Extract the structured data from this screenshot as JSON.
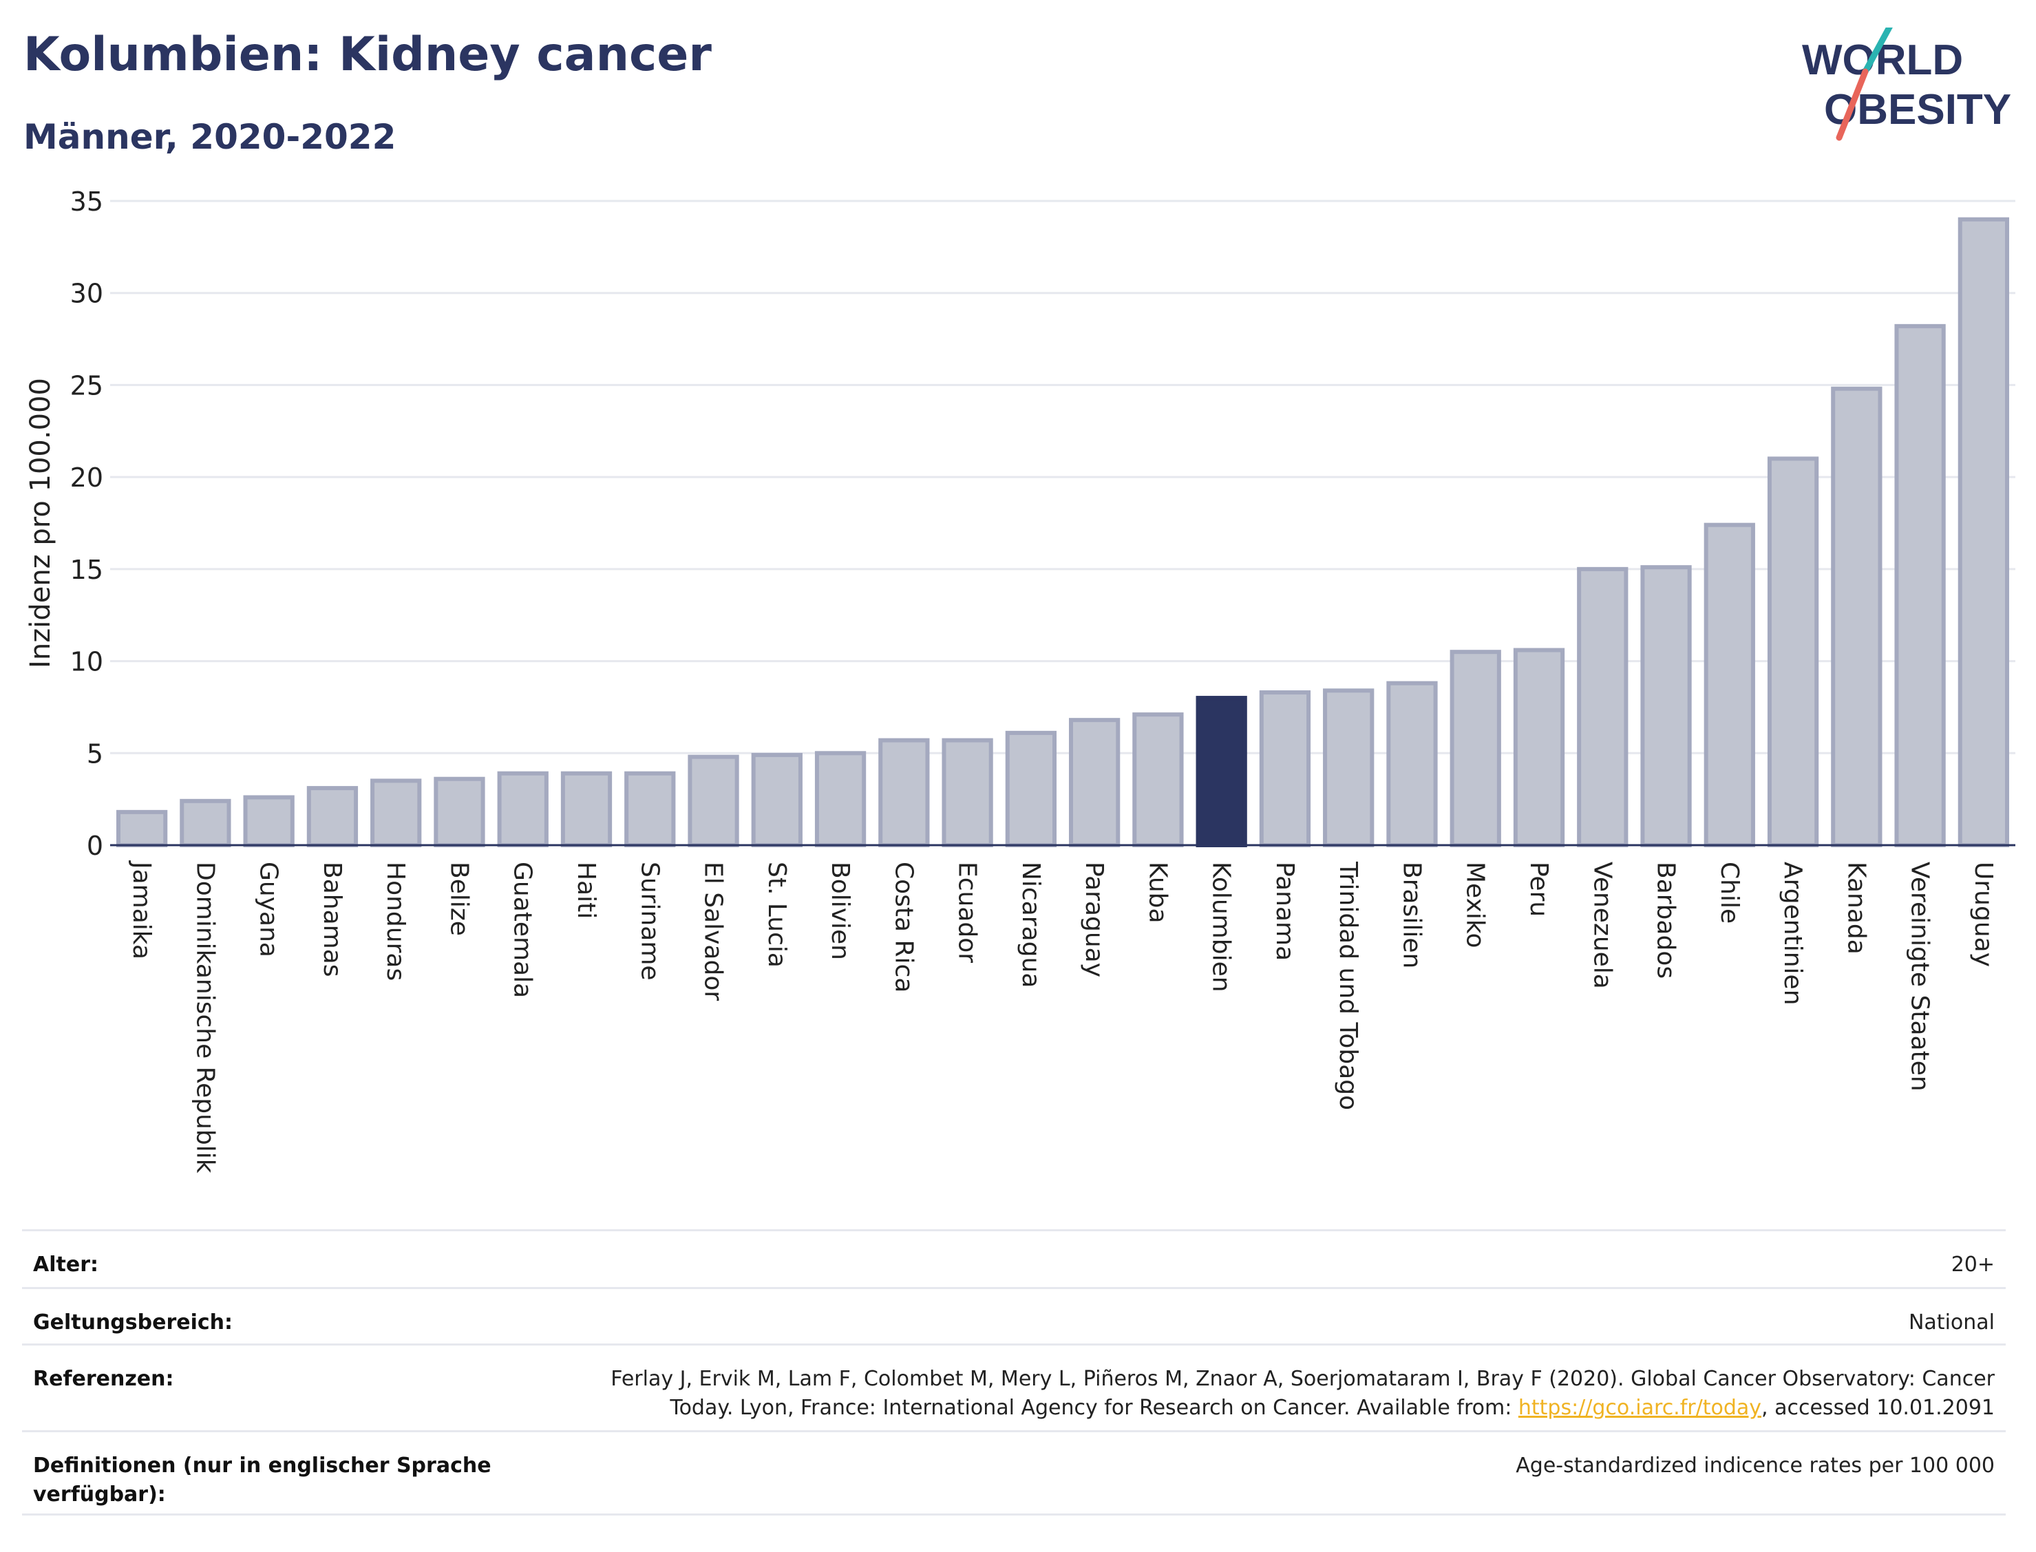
{
  "title": "Kolumbien: Kidney cancer",
  "subtitle": "Männer, 2020-2022",
  "logo": {
    "line1": "WORLD",
    "line2": "OBESITY",
    "text_color": "#2b3561",
    "slash_colors": [
      "#2ab3b1",
      "#e8655a"
    ]
  },
  "chart_data": {
    "type": "bar",
    "ylabel": "Inzidenz pro 100.000",
    "xlabel": "",
    "ylim": [
      0,
      35
    ],
    "yticks": [
      0,
      5,
      10,
      15,
      20,
      25,
      30,
      35
    ],
    "grid": true,
    "categories": [
      "Jamaika",
      "Dominikanische Republik",
      "Guyana",
      "Bahamas",
      "Honduras",
      "Belize",
      "Guatemala",
      "Haiti",
      "Suriname",
      "El Salvador",
      "St. Lucia",
      "Bolivien",
      "Costa Rica",
      "Ecuador",
      "Nicaragua",
      "Paraguay",
      "Kuba",
      "Kolumbien",
      "Panama",
      "Trinidad und Tobago",
      "Brasilien",
      "Mexiko",
      "Peru",
      "Venezuela",
      "Barbados",
      "Chile",
      "Argentinien",
      "Kanada",
      "Vereinigte Staaten",
      "Uruguay"
    ],
    "values": [
      1.8,
      2.4,
      2.6,
      3.1,
      3.5,
      3.6,
      3.9,
      3.9,
      3.9,
      4.8,
      4.9,
      5.0,
      5.7,
      5.7,
      6.1,
      6.8,
      7.1,
      8.0,
      8.3,
      8.4,
      8.8,
      10.5,
      10.6,
      15.0,
      15.1,
      17.4,
      21.0,
      24.8,
      28.2,
      34.0
    ],
    "highlight": "Kolumbien",
    "colors": {
      "bar": "#c0c4d0",
      "bar_edge": "#a4a9bf",
      "highlight": "#2b3561",
      "grid": "#e6e8ee",
      "axis": "#2b3561"
    }
  },
  "info": [
    {
      "label": "Alter:",
      "value": "20+"
    },
    {
      "label": "Geltungsbereich:",
      "value": "National"
    },
    {
      "label": "Referenzen:",
      "value_before": "Ferlay J, Ervik M, Lam F, Colombet M, Mery L, Piñeros M, Znaor A, Soerjomataram I, Bray F (2020). Global Cancer Observatory: Cancer Today. Lyon, France: International Agency for Research on Cancer. Available from: ",
      "link": "https://gco.iarc.fr/today",
      "value_after": ", accessed 10.01.2091"
    },
    {
      "label": "Definitionen (nur in englischer Sprache verfügbar):",
      "value": "Age-standardized indicence rates per 100 000"
    }
  ]
}
